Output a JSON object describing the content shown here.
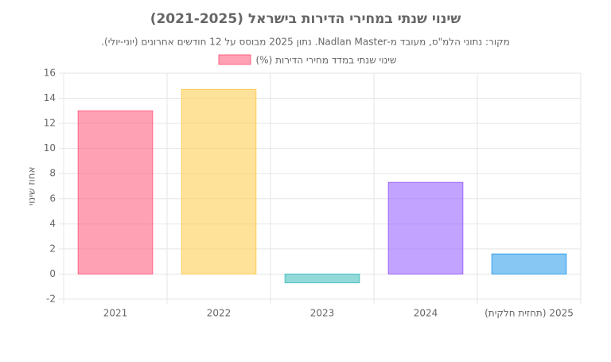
{
  "chart_data": {
    "type": "bar",
    "title": "שינוי שנתי במחירי הדירות בישראל (2021-2025)",
    "subtitle": "מקור: נתוני הלמ\"ס, מעובד מ-Nadlan Master. נתון 2025 מבוסס על 12 חודשים אחרונים (יוני-יולי).",
    "y_label": "אחוז שינוי",
    "categories": [
      "2021",
      "2022",
      "2023",
      "2024",
      "2025 (תחזית חלקית)"
    ],
    "series": [
      {
        "name": "שינוי שנתי במדד מחירי הדירות (%)",
        "colors": [
          "#ff6384",
          "#ffce56",
          "#4bc0c0",
          "#9966ff",
          "#36a2eb"
        ],
        "values": [
          13.0,
          14.7,
          -0.7,
          7.3,
          1.6
        ]
      }
    ],
    "ylim": [
      -2,
      16
    ],
    "yticks": [
      -2,
      0,
      2,
      4,
      6,
      8,
      10,
      12,
      14,
      16
    ],
    "grid": true
  }
}
